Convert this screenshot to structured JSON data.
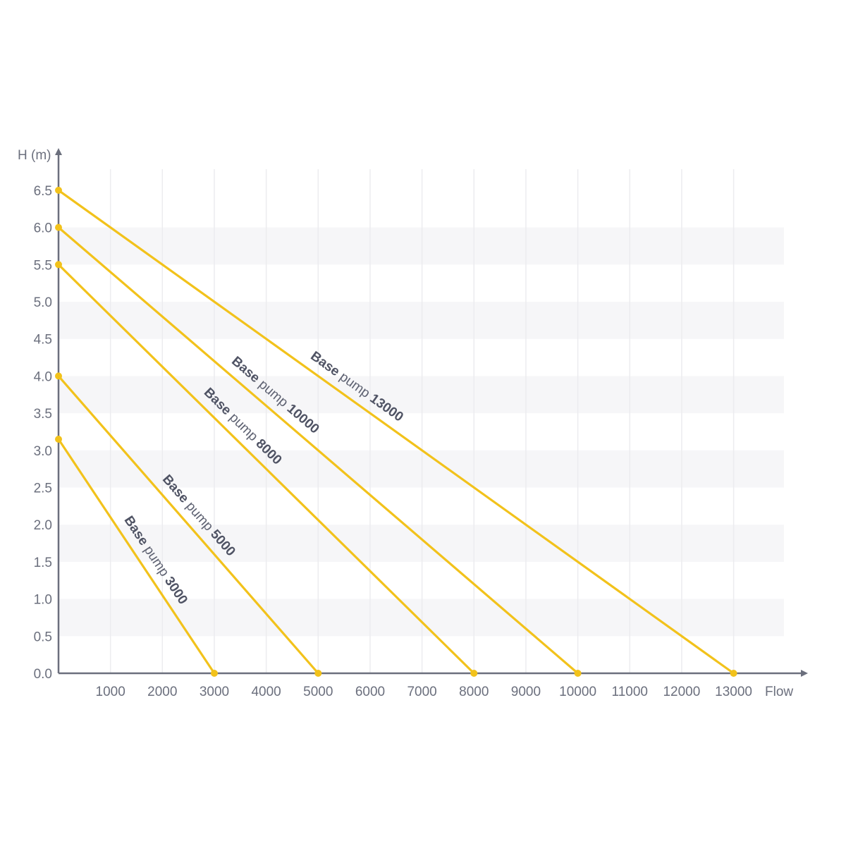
{
  "chart_data": {
    "type": "line",
    "xlabel": "Flow",
    "ylabel": "H (m)",
    "xlim": [
      0,
      14000
    ],
    "ylim": [
      0,
      6.5
    ],
    "x_ticks": [
      "1000",
      "2000",
      "3000",
      "4000",
      "5000",
      "6000",
      "7000",
      "8000",
      "9000",
      "10000",
      "11000",
      "12000",
      "13000"
    ],
    "y_ticks": [
      "0.0",
      "0.5",
      "1.0",
      "1.5",
      "2.0",
      "2.5",
      "3.0",
      "3.5",
      "4.0",
      "4.5",
      "5.0",
      "5.5",
      "6.0",
      "6.5"
    ],
    "grid": "vertical lines and alternating horizontal bands",
    "line_color": "#f2c21b",
    "series": [
      {
        "label_bold_1": "Base",
        "label_normal": "pump",
        "label_bold_2": "3000",
        "x": [
          0,
          3000
        ],
        "y": [
          3.15,
          0
        ]
      },
      {
        "label_bold_1": "Base",
        "label_normal": "pump",
        "label_bold_2": "5000",
        "x": [
          0,
          5000
        ],
        "y": [
          4.0,
          0
        ]
      },
      {
        "label_bold_1": "Base",
        "label_normal": "pump",
        "label_bold_2": "8000",
        "x": [
          0,
          8000
        ],
        "y": [
          5.5,
          0
        ]
      },
      {
        "label_bold_1": "Base",
        "label_normal": "pump",
        "label_bold_2": "10000",
        "x": [
          0,
          10000
        ],
        "y": [
          6.0,
          0
        ]
      },
      {
        "label_bold_1": "Base",
        "label_normal": "pump",
        "label_bold_2": "13000",
        "x": [
          0,
          13000
        ],
        "y": [
          6.5,
          0
        ]
      }
    ]
  }
}
